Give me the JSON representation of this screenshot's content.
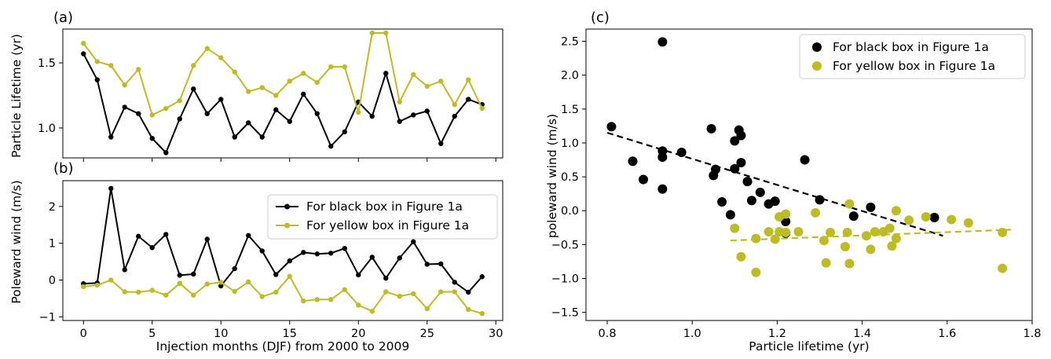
{
  "chart_data": [
    {
      "panel_label": "(a)",
      "type": "line",
      "xlabel": "",
      "ylabel": "Particle Lifetime (yr)",
      "xlim": [
        -1.5,
        30.5
      ],
      "ylim": [
        0.77,
        1.76
      ],
      "xticks": [
        0,
        5,
        10,
        15,
        20,
        25,
        30
      ],
      "xtick_labels": [],
      "yticks": [
        1.0,
        1.5
      ],
      "ytick_labels": [
        "1.0",
        "1.5"
      ],
      "x": [
        0,
        1,
        2,
        3,
        4,
        5,
        6,
        7,
        8,
        9,
        10,
        11,
        12,
        13,
        14,
        15,
        16,
        17,
        18,
        19,
        20,
        21,
        22,
        23,
        24,
        25,
        26,
        27,
        28,
        29
      ],
      "series": [
        {
          "color": "#000000",
          "values": [
            1.57,
            1.37,
            0.93,
            1.16,
            1.11,
            0.92,
            0.81,
            1.07,
            1.3,
            1.11,
            1.22,
            0.93,
            1.04,
            0.93,
            1.14,
            1.05,
            1.26,
            1.11,
            0.86,
            0.97,
            1.2,
            1.09,
            1.42,
            1.05,
            1.1,
            1.13,
            0.88,
            1.09,
            1.22,
            1.18
          ]
        },
        {
          "color": "#bcbd22",
          "values": [
            1.65,
            1.51,
            1.48,
            1.33,
            1.45,
            1.1,
            1.15,
            1.21,
            1.48,
            1.61,
            1.54,
            1.43,
            1.28,
            1.31,
            1.25,
            1.36,
            1.42,
            1.35,
            1.47,
            1.47,
            1.12,
            1.73,
            1.73,
            1.2,
            1.41,
            1.32,
            1.36,
            1.18,
            1.37,
            1.15
          ]
        }
      ]
    },
    {
      "panel_label": "(b)",
      "type": "line",
      "xlabel": "Injection months (DJF) from 2000 to 2009",
      "ylabel": "Poleward wind (m/s)",
      "xlim": [
        -1.5,
        30.5
      ],
      "ylim": [
        -1.1,
        2.7
      ],
      "xticks": [
        0,
        5,
        10,
        15,
        20,
        25,
        30
      ],
      "xtick_labels": [
        "0",
        "5",
        "10",
        "15",
        "20",
        "25",
        "30"
      ],
      "yticks": [
        -1,
        0,
        1,
        2
      ],
      "ytick_labels": [
        "−1",
        "0",
        "1",
        "2"
      ],
      "x": [
        0,
        1,
        2,
        3,
        4,
        5,
        6,
        7,
        8,
        9,
        10,
        11,
        12,
        13,
        14,
        15,
        16,
        17,
        18,
        19,
        20,
        21,
        22,
        23,
        24,
        25,
        26,
        27,
        28,
        29
      ],
      "legend": {
        "location": "upper-right",
        "entries": [
          "For black box in Figure 1a",
          "For yellow box in Figure 1a"
        ]
      },
      "series": [
        {
          "name": "For black box in Figure 1a",
          "color": "#000000",
          "values": [
            -0.1,
            -0.08,
            2.49,
            0.28,
            1.19,
            0.88,
            1.24,
            0.13,
            0.16,
            1.11,
            -0.16,
            0.31,
            1.21,
            0.79,
            0.15,
            0.52,
            0.75,
            0.71,
            0.73,
            0.86,
            0.14,
            0.62,
            0.05,
            0.6,
            1.04,
            0.43,
            0.44,
            -0.06,
            -0.33,
            0.09
          ]
        },
        {
          "name": "For yellow box in Figure 1a",
          "color": "#bcbd22",
          "values": [
            -0.18,
            -0.14,
            0.0,
            -0.32,
            -0.33,
            -0.28,
            -0.41,
            -0.09,
            -0.41,
            -0.11,
            -0.06,
            -0.31,
            -0.05,
            -0.45,
            -0.33,
            0.1,
            -0.57,
            -0.53,
            -0.53,
            -0.26,
            -0.68,
            -0.85,
            -0.32,
            -0.44,
            -0.37,
            -0.78,
            -0.32,
            -0.32,
            -0.8,
            -0.91
          ]
        }
      ]
    },
    {
      "panel_label": "(c)",
      "type": "scatter",
      "xlabel": "Particle lifetime (yr)",
      "ylabel": "poleward wind (m/s)",
      "xlim": [
        0.75,
        1.8
      ],
      "ylim": [
        -1.62,
        2.68
      ],
      "xticks": [
        0.8,
        1.0,
        1.2,
        1.4,
        1.6,
        1.8
      ],
      "xtick_labels": [
        "0.8",
        "1.0",
        "1.2",
        "1.4",
        "1.6",
        "1.8"
      ],
      "yticks": [
        -1.5,
        -1.0,
        -0.5,
        0.0,
        0.5,
        1.0,
        1.5,
        2.0,
        2.5
      ],
      "ytick_labels": [
        "−1.5",
        "−1.0",
        "−0.5",
        "0.0",
        "0.5",
        "1.0",
        "1.5",
        "2.0",
        "2.5"
      ],
      "legend": {
        "location": "upper-right",
        "entries": [
          "For black box in Figure 1a",
          "For yellow box in Figure 1a"
        ]
      },
      "series": [
        {
          "name": "For black box in Figure 1a",
          "color": "#000000",
          "points": [
            [
              0.81,
              1.24
            ],
            [
              0.86,
              0.73
            ],
            [
              0.885,
              0.46
            ],
            [
              0.93,
              0.88
            ],
            [
              0.93,
              0.79
            ],
            [
              0.93,
              2.49
            ],
            [
              0.93,
              0.32
            ],
            [
              0.975,
              0.86
            ],
            [
              1.045,
              1.21
            ],
            [
              1.05,
              0.52
            ],
            [
              1.055,
              0.61
            ],
            [
              1.07,
              0.13
            ],
            [
              1.09,
              -0.06
            ],
            [
              1.1,
              1.03
            ],
            [
              1.1,
              0.62
            ],
            [
              1.11,
              1.19
            ],
            [
              1.115,
              1.11
            ],
            [
              1.115,
              0.71
            ],
            [
              1.13,
              0.43
            ],
            [
              1.14,
              0.15
            ],
            [
              1.16,
              0.27
            ],
            [
              1.18,
              0.1
            ],
            [
              1.195,
              0.14
            ],
            [
              1.22,
              -0.33
            ],
            [
              1.22,
              -0.16
            ],
            [
              1.265,
              0.75
            ],
            [
              1.3,
              0.16
            ],
            [
              1.38,
              -0.08
            ],
            [
              1.42,
              0.05
            ],
            [
              1.57,
              -0.1
            ]
          ],
          "trend": {
            "x": [
              0.8,
              1.59
            ],
            "y": [
              1.15,
              -0.37
            ],
            "style": "dashed"
          }
        },
        {
          "name": "For yellow box in Figure 1a",
          "color": "#bcbd22",
          "points": [
            [
              1.1,
              -0.26
            ],
            [
              1.115,
              -0.68
            ],
            [
              1.15,
              -0.91
            ],
            [
              1.15,
              -0.41
            ],
            [
              1.18,
              -0.31
            ],
            [
              1.195,
              -0.42
            ],
            [
              1.205,
              -0.09
            ],
            [
              1.205,
              -0.31
            ],
            [
              1.22,
              -0.32
            ],
            [
              1.22,
              -0.05
            ],
            [
              1.25,
              -0.31
            ],
            [
              1.29,
              -0.03
            ],
            [
              1.31,
              -0.44
            ],
            [
              1.315,
              -0.77
            ],
            [
              1.325,
              -0.32
            ],
            [
              1.36,
              -0.53
            ],
            [
              1.365,
              -0.32
            ],
            [
              1.37,
              0.1
            ],
            [
              1.37,
              -0.78
            ],
            [
              1.41,
              -0.37
            ],
            [
              1.42,
              -0.57
            ],
            [
              1.43,
              -0.31
            ],
            [
              1.45,
              -0.31
            ],
            [
              1.465,
              -0.26
            ],
            [
              1.47,
              -0.52
            ],
            [
              1.48,
              -0.41
            ],
            [
              1.48,
              0.0
            ],
            [
              1.51,
              -0.14
            ],
            [
              1.55,
              -0.09
            ],
            [
              1.61,
              -0.13
            ],
            [
              1.65,
              -0.18
            ],
            [
              1.73,
              -0.32
            ],
            [
              1.73,
              -0.85
            ]
          ],
          "trend": {
            "x": [
              1.09,
              1.75
            ],
            "y": [
              -0.44,
              -0.28
            ],
            "style": "dashed"
          }
        }
      ]
    }
  ]
}
